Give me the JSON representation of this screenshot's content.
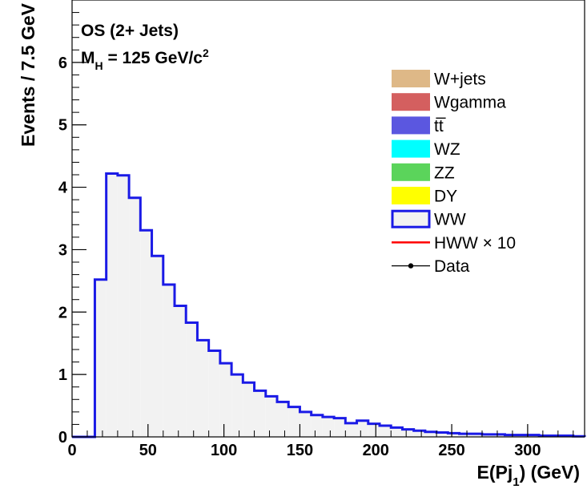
{
  "chart_data": {
    "type": "histogram",
    "xlabel": "E(Pj",
    "xlabel_sub": "1",
    "xlabel_suffix": ") (GeV)",
    "ylabel": "Events / 7.5 GeV",
    "xlim": [
      0,
      337.5
    ],
    "ylim": [
      0,
      7
    ],
    "bin_width": 7.5,
    "x_ticks": [
      0,
      50,
      100,
      150,
      200,
      250,
      300
    ],
    "x_tick_labels": [
      "0",
      "50",
      "100",
      "150",
      "200",
      "250",
      "300"
    ],
    "y_ticks": [
      0,
      1,
      2,
      3,
      4,
      5,
      6
    ],
    "y_tick_labels": [
      "0",
      "1",
      "2",
      "3",
      "4",
      "5",
      "6"
    ],
    "annotation_line1": "OS (2+ Jets)",
    "annotation_line2": {
      "prefix": "M",
      "sub": "H",
      "middle": " = 125 GeV/c",
      "sup": "2"
    },
    "legend_position": "top-right",
    "series": [
      {
        "name": "WW",
        "style": "filled-outline",
        "fill": "#f2f2f2",
        "color": "#1a1ae6",
        "bin_edges_start": 0,
        "values": [
          0,
          0,
          2.52,
          4.22,
          4.19,
          3.83,
          3.31,
          2.9,
          2.44,
          2.1,
          1.83,
          1.55,
          1.38,
          1.18,
          1.0,
          0.87,
          0.74,
          0.65,
          0.56,
          0.48,
          0.4,
          0.35,
          0.32,
          0.3,
          0.22,
          0.26,
          0.21,
          0.18,
          0.15,
          0.12,
          0.1,
          0.08,
          0.07,
          0.06,
          0.05,
          0.05,
          0.04,
          0.04,
          0.03,
          0.03,
          0.03,
          0.02,
          0.02,
          0.02,
          0.01
        ]
      }
    ],
    "legend": [
      {
        "label": "W+jets",
        "kind": "fill",
        "color": "#deb887"
      },
      {
        "label": "Wgamma",
        "kind": "fill",
        "color": "#d45f5f"
      },
      {
        "label": "tt̅",
        "kind": "fill",
        "color": "#5b57e0"
      },
      {
        "label": "WZ",
        "kind": "fill",
        "color": "#00ffff"
      },
      {
        "label": "ZZ",
        "kind": "fill",
        "color": "#5bd45b"
      },
      {
        "label": "DY",
        "kind": "fill",
        "color": "#ffff00"
      },
      {
        "label": "WW",
        "kind": "outline",
        "color": "#1a1ae6",
        "fill": "#f2f2f2"
      },
      {
        "label": "HWW × 10",
        "kind": "line",
        "color": "#ff0000"
      },
      {
        "label": "Data",
        "kind": "marker",
        "color": "#000000"
      }
    ]
  }
}
